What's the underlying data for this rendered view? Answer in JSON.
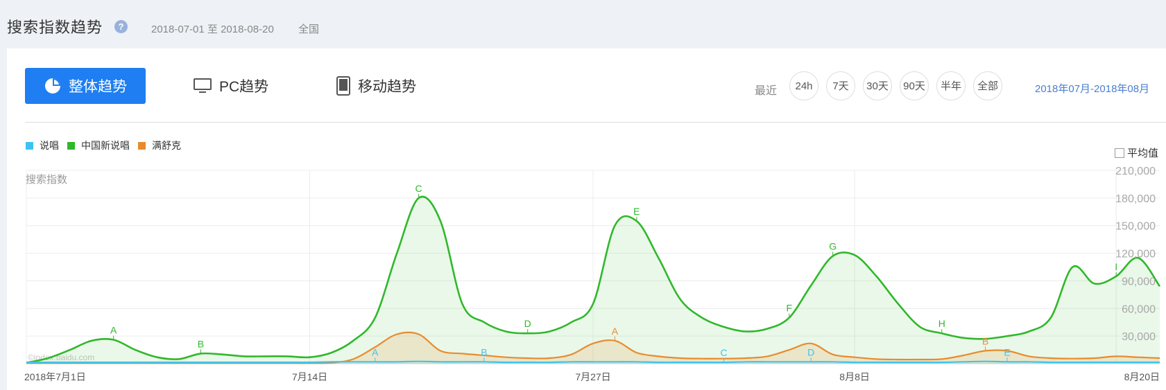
{
  "header": {
    "title": "搜索指数趋势",
    "help_icon": "?",
    "date_range": "2018-07-01 至 2018-08-20",
    "region": "全国"
  },
  "tabs": [
    {
      "label": "整体趋势",
      "icon": "pie-chart-icon",
      "active": true
    },
    {
      "label": "PC趋势",
      "icon": "monitor-icon",
      "active": false
    },
    {
      "label": "移动趋势",
      "icon": "tablet-icon",
      "active": false
    }
  ],
  "range_selector": {
    "label": "最近",
    "options": [
      "24h",
      "7天",
      "30天",
      "90天",
      "半年",
      "全部"
    ],
    "current": "2018年07月-2018年08月"
  },
  "legend": [
    {
      "name": "说唱",
      "color": "#3dc3f2"
    },
    {
      "name": "中国新说唱",
      "color": "#2fb82a"
    },
    {
      "name": "满舒克",
      "color": "#e88b2e"
    }
  ],
  "average_toggle": {
    "label": "平均值",
    "checked": false
  },
  "watermark": "©index.baidu.com",
  "chart_data": {
    "type": "line",
    "ylabel": "搜索指数",
    "ylim": [
      0,
      210000
    ],
    "y_ticks": [
      "30,000",
      "60,000",
      "90,000",
      "120,000",
      "150,000",
      "180,000",
      "210,000"
    ],
    "y_tick_values": [
      30000,
      60000,
      90000,
      120000,
      150000,
      180000,
      210000
    ],
    "x_ticks": [
      {
        "label": "2018年7月1日",
        "index": 0
      },
      {
        "label": "7月14日",
        "index": 13
      },
      {
        "label": "7月27日",
        "index": 26
      },
      {
        "label": "8月8日",
        "index": 38
      },
      {
        "label": "8月20日",
        "index": 50
      }
    ],
    "grid": true,
    "series": [
      {
        "name": "中国新说唱",
        "color": "#2fb82a",
        "fill": true,
        "values": [
          1000,
          6000,
          15000,
          25000,
          26000,
          15000,
          7000,
          5000,
          11000,
          10000,
          8000,
          8000,
          8000,
          7000,
          12000,
          25000,
          50000,
          120000,
          180000,
          155000,
          65000,
          45000,
          35000,
          33000,
          35000,
          45000,
          65000,
          150000,
          155000,
          115000,
          70000,
          50000,
          40000,
          35000,
          38000,
          50000,
          85000,
          117000,
          118000,
          95000,
          65000,
          40000,
          33000,
          28000,
          27000,
          30000,
          35000,
          50000,
          105000,
          87000,
          95000,
          115000,
          84000
        ]
      },
      {
        "name": "满舒克",
        "color": "#e88b2e",
        "fill": true,
        "values": [
          500,
          500,
          500,
          500,
          500,
          500,
          500,
          500,
          500,
          500,
          500,
          500,
          500,
          500,
          1000,
          5000,
          18000,
          32000,
          32000,
          14000,
          11000,
          9000,
          7000,
          6000,
          6000,
          10000,
          22000,
          25000,
          12000,
          8000,
          6000,
          5500,
          5500,
          6000,
          8000,
          15000,
          22000,
          10000,
          7000,
          5000,
          4500,
          4500,
          5000,
          9000,
          14000,
          14000,
          8000,
          6000,
          5500,
          6000,
          8000,
          7000,
          6000
        ]
      },
      {
        "name": "说唱",
        "color": "#3dc3f2",
        "fill": false,
        "values": [
          1500,
          1500,
          1500,
          1500,
          1500,
          1500,
          1500,
          1500,
          1500,
          1500,
          1500,
          1500,
          1500,
          1500,
          2000,
          2000,
          2000,
          2000,
          2500,
          2000,
          2000,
          2000,
          1500,
          1500,
          1500,
          2000,
          2000,
          2000,
          2000,
          1500,
          1500,
          1500,
          1500,
          2000,
          2000,
          2000,
          2000,
          2000,
          1500,
          1500,
          1500,
          1500,
          1500,
          2000,
          2500,
          2000,
          2000,
          1500,
          1500,
          1500,
          1500,
          1500,
          1500
        ]
      }
    ],
    "annotations": [
      {
        "series": "中国新说唱",
        "label": "A",
        "index": 4
      },
      {
        "series": "中国新说唱",
        "label": "B",
        "index": 8
      },
      {
        "series": "中国新说唱",
        "label": "C",
        "index": 18
      },
      {
        "series": "中国新说唱",
        "label": "D",
        "index": 23
      },
      {
        "series": "中国新说唱",
        "label": "E",
        "index": 28
      },
      {
        "series": "中国新说唱",
        "label": "F",
        "index": 35
      },
      {
        "series": "中国新说唱",
        "label": "G",
        "index": 37
      },
      {
        "series": "中国新说唱",
        "label": "H",
        "index": 42
      },
      {
        "series": "中国新说唱",
        "label": "I",
        "index": 50
      },
      {
        "series": "满舒克",
        "label": "A",
        "index": 27
      },
      {
        "series": "满舒克",
        "label": "B",
        "index": 44
      },
      {
        "series": "说唱",
        "label": "A",
        "index": 16
      },
      {
        "series": "说唱",
        "label": "B",
        "index": 21
      },
      {
        "series": "说唱",
        "label": "C",
        "index": 32
      },
      {
        "series": "说唱",
        "label": "D",
        "index": 36
      },
      {
        "series": "说唱",
        "label": "E",
        "index": 45
      }
    ]
  }
}
